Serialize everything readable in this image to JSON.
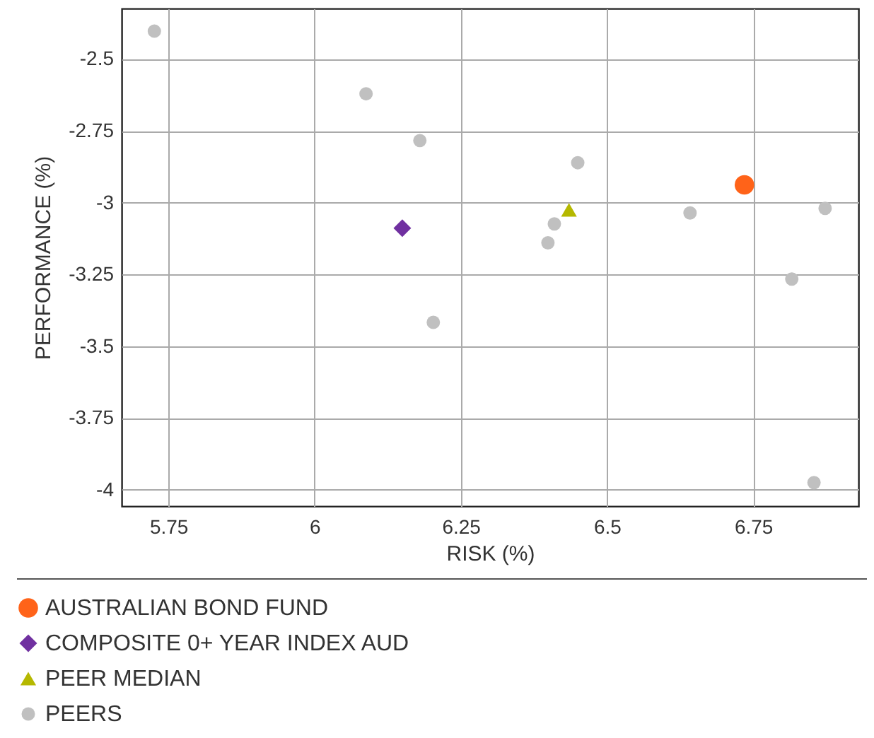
{
  "chart_data": {
    "type": "scatter",
    "xlabel": "RISK (%)",
    "ylabel": "PERFORMANCE (%)",
    "xlim": [
      5.67,
      6.93
    ],
    "ylim": [
      -4.057,
      -2.324
    ],
    "xticks": [
      5.75,
      6,
      6.25,
      6.5,
      6.75
    ],
    "yticks": [
      -4,
      -3.75,
      -3.5,
      -3.25,
      -3,
      -2.75,
      -2.5
    ],
    "grid": true,
    "legend": "bottom",
    "series": [
      {
        "name": "AUSTRALIAN BOND FUND",
        "color": "#ff6319",
        "marker": "circle",
        "x": [
          6.735
        ],
        "values": [
          -2.938
        ]
      },
      {
        "name": "COMPOSITE 0+ YEAR INDEX AUD",
        "color": "#7030a0",
        "marker": "diamond",
        "x": [
          6.15
        ],
        "values": [
          -3.089
        ]
      },
      {
        "name": "PEER MEDIAN",
        "color": "#b5b800",
        "marker": "triangle",
        "x": [
          6.435
        ],
        "values": [
          -3.025
        ]
      },
      {
        "name": "PEERS",
        "color": "#c0c0c0",
        "marker": "circle",
        "x": [
          5.726,
          6.088,
          6.18,
          6.203,
          6.45,
          6.41,
          6.399,
          6.642,
          6.873,
          6.816,
          6.854
        ],
        "values": [
          -2.403,
          -2.621,
          -2.784,
          -3.417,
          -2.861,
          -3.074,
          -3.14,
          -3.036,
          -3.02,
          -3.266,
          -3.975
        ]
      }
    ]
  }
}
